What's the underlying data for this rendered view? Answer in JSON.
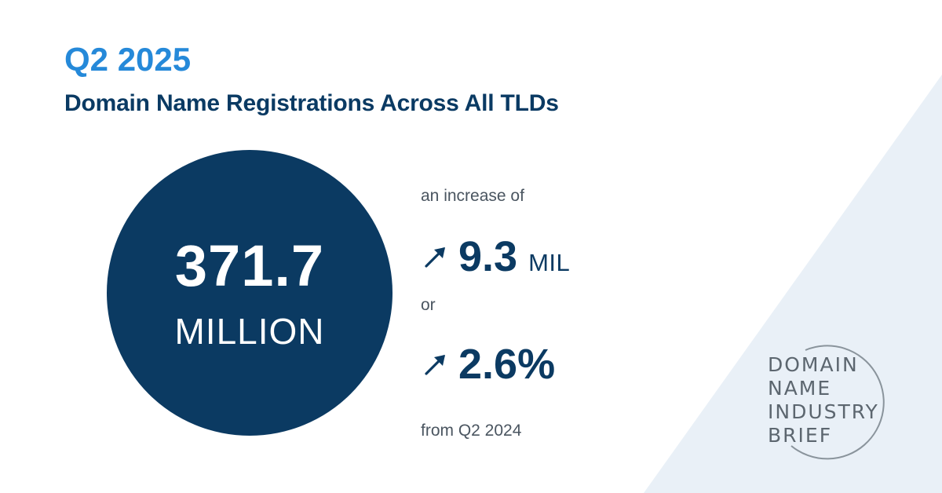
{
  "header": {
    "period": "Q2 2025",
    "headline": "Domain Name Registrations Across All TLDs"
  },
  "total": {
    "value": "371.7",
    "unit": "MILLION"
  },
  "change": {
    "intro": "an increase of",
    "absolute_value": "9.3",
    "absolute_unit": "MIL",
    "connector": "or",
    "percent_value": "2.6%",
    "comparison": "from Q2 2024",
    "arrow_icon": "trend-up-arrow-icon"
  },
  "brand": {
    "line1": "DOMAIN",
    "line2": "NAME",
    "line3": "INDUSTRY",
    "line4": "BRIEF"
  },
  "colors": {
    "accent_blue": "#2589d9",
    "navy": "#0b3a62",
    "background_shape": "#e9f0f7",
    "brand_gray": "#5c666f"
  }
}
